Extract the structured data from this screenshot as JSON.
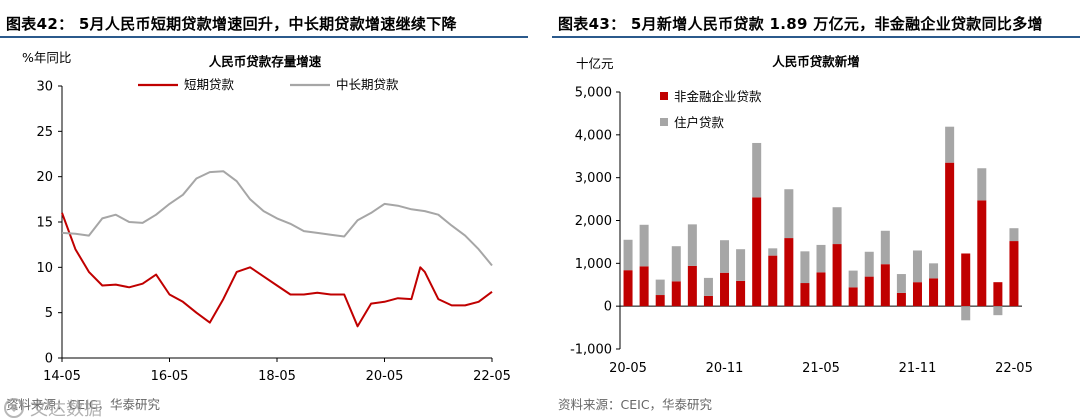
{
  "chart_data": [
    {
      "type": "line",
      "figure_title": "图表42： 5月人民币短期贷款增速回升，中长期贷款增速继续下降",
      "title": "人民币贷款存量增速",
      "unit_label": "%年同比",
      "ylim": [
        0,
        30
      ],
      "y_ticks": [
        "0",
        "5",
        "10",
        "15",
        "20",
        "25",
        "30"
      ],
      "x_ticks": [
        "14-05",
        "16-05",
        "18-05",
        "20-05",
        "22-05"
      ],
      "grid": false,
      "legend": "top",
      "source": "资料来源：CEIC，华泰研究",
      "series": [
        {
          "name": "短期贷款",
          "color": "#c00000",
          "x": [
            "14-05",
            "14-08",
            "14-11",
            "15-02",
            "15-05",
            "15-08",
            "15-11",
            "16-02",
            "16-05",
            "16-08",
            "16-11",
            "17-02",
            "17-05",
            "17-08",
            "17-11",
            "18-02",
            "18-05",
            "18-08",
            "18-11",
            "19-02",
            "19-05",
            "19-08",
            "19-11",
            "20-02",
            "20-05",
            "20-08",
            "20-11",
            "21-01",
            "21-02",
            "21-05",
            "21-08",
            "21-11",
            "22-02",
            "22-05"
          ],
          "values": [
            16.0,
            12.0,
            9.5,
            8.0,
            8.1,
            7.8,
            8.2,
            9.2,
            7.0,
            6.2,
            5.0,
            3.9,
            6.5,
            9.5,
            10.0,
            9.0,
            8.0,
            7.0,
            7.0,
            7.2,
            7.0,
            7.0,
            3.5,
            6.0,
            6.2,
            6.6,
            6.5,
            10.0,
            9.5,
            6.5,
            5.8,
            5.8,
            6.2,
            7.3
          ]
        },
        {
          "name": "中长期贷款",
          "color": "#a6a6a6",
          "x": [
            "14-05",
            "14-08",
            "14-11",
            "15-02",
            "15-05",
            "15-08",
            "15-11",
            "16-02",
            "16-05",
            "16-08",
            "16-11",
            "17-02",
            "17-05",
            "17-08",
            "17-11",
            "18-02",
            "18-05",
            "18-08",
            "18-11",
            "19-02",
            "19-05",
            "19-08",
            "19-11",
            "20-02",
            "20-05",
            "20-08",
            "20-11",
            "21-02",
            "21-05",
            "21-08",
            "21-11",
            "22-02",
            "22-05"
          ],
          "values": [
            13.8,
            13.7,
            13.5,
            15.4,
            15.8,
            15.0,
            14.9,
            15.8,
            17.0,
            18.0,
            19.8,
            20.5,
            20.6,
            19.5,
            17.5,
            16.2,
            15.4,
            14.8,
            14.0,
            13.8,
            13.6,
            13.4,
            15.2,
            16.0,
            17.0,
            16.8,
            16.4,
            16.2,
            15.8,
            14.6,
            13.5,
            12.0,
            10.2
          ]
        }
      ]
    },
    {
      "type": "bar",
      "figure_title": "图表43： 5月新增人民币贷款 1.89 万亿元，非金融企业贷款同比多增",
      "title": "人民币贷款新增",
      "unit_label": "十亿元",
      "ylim": [
        -1000,
        5000
      ],
      "y_ticks": [
        "-1,000",
        "0",
        "1,000",
        "2,000",
        "3,000",
        "4,000",
        "5,000"
      ],
      "x_ticks": [
        "20-05",
        "20-11",
        "21-05",
        "21-11",
        "22-05"
      ],
      "grid": false,
      "legend": "top-left",
      "stacked": true,
      "source": "资料来源：CEIC，华泰研究",
      "categories": [
        "20-05",
        "20-06",
        "20-07",
        "20-08",
        "20-09",
        "20-10",
        "20-11",
        "20-12",
        "21-01",
        "21-02",
        "21-03",
        "21-04",
        "21-05",
        "21-06",
        "21-07",
        "21-08",
        "21-09",
        "21-10",
        "21-11",
        "21-12",
        "22-01",
        "22-02",
        "22-03",
        "22-04",
        "22-05"
      ],
      "series": [
        {
          "name": "非金融企业贷款",
          "color": "#c00000",
          "values": [
            840,
            930,
            260,
            580,
            940,
            240,
            780,
            590,
            2540,
            1180,
            1590,
            540,
            790,
            1450,
            440,
            690,
            980,
            310,
            560,
            650,
            3350,
            1230,
            2470,
            560,
            1520
          ]
        },
        {
          "name": "住户贷款",
          "color": "#a6a6a6",
          "values": [
            710,
            970,
            360,
            820,
            970,
            420,
            760,
            740,
            1270,
            170,
            1140,
            740,
            640,
            860,
            390,
            580,
            780,
            440,
            740,
            350,
            840,
            -330,
            750,
            -210,
            300
          ]
        }
      ]
    }
  ],
  "watermark_text": "文达数据"
}
